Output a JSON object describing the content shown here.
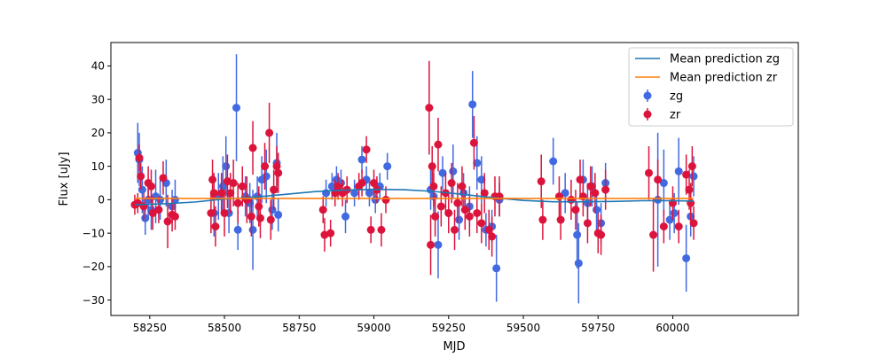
{
  "chart_data": {
    "type": "scatter",
    "title": "",
    "xlabel": "MJD",
    "ylabel": "Flux [uJy]",
    "xlim": [
      58120,
      60420
    ],
    "ylim": [
      -34.6,
      47.0
    ],
    "xticks": [
      58250,
      58500,
      58750,
      59000,
      59250,
      59500,
      59750,
      60000
    ],
    "yticks": [
      -30,
      -20,
      -10,
      0,
      10,
      20,
      30,
      40
    ],
    "grid": false,
    "legend_position": "top-right",
    "colors": {
      "zg": "#4169e1",
      "zr": "#dc143c",
      "pred_zg": "#1f77b4",
      "pred_zr": "#ff7f0e"
    },
    "lines": [
      {
        "name": "Mean prediction zg",
        "x": [
          58200,
          58300,
          58400,
          58500,
          58600,
          58700,
          58800,
          58900,
          59000,
          59100,
          59200,
          59300,
          59400,
          59500,
          59600,
          59700,
          59800,
          59900,
          60000,
          60070
        ],
        "y": [
          -1.5,
          -1.2,
          -0.7,
          0.2,
          0.8,
          1.6,
          2.4,
          2.9,
          3.1,
          3.0,
          2.5,
          1.6,
          0.6,
          -0.2,
          -0.6,
          -0.6,
          -0.5,
          -0.3,
          -0.3,
          -0.4
        ]
      },
      {
        "name": "Mean prediction zr",
        "x": [
          58200,
          60070
        ],
        "y": [
          0.4,
          0.4
        ]
      }
    ],
    "series": [
      {
        "name": "zg",
        "points": [
          {
            "x": 58210,
            "y": 14,
            "err": 9
          },
          {
            "x": 58215,
            "y": 12,
            "err": 8
          },
          {
            "x": 58225,
            "y": 3,
            "err": 7
          },
          {
            "x": 58235,
            "y": -5.5,
            "err": 5
          },
          {
            "x": 58245,
            "y": 0,
            "err": 6
          },
          {
            "x": 58255,
            "y": -3,
            "err": 6
          },
          {
            "x": 58270,
            "y": 1,
            "err": 8
          },
          {
            "x": 58285,
            "y": 0,
            "err": 6
          },
          {
            "x": 58305,
            "y": 5,
            "err": 7
          },
          {
            "x": 58325,
            "y": -2,
            "err": 5
          },
          {
            "x": 58335,
            "y": 0,
            "err": 6
          },
          {
            "x": 58465,
            "y": -4,
            "err": 7
          },
          {
            "x": 58480,
            "y": 1,
            "err": 7
          },
          {
            "x": 58495,
            "y": 4,
            "err": 9
          },
          {
            "x": 58505,
            "y": 10,
            "err": 9
          },
          {
            "x": 58515,
            "y": -4,
            "err": 6
          },
          {
            "x": 58540,
            "y": 27.5,
            "err": 16
          },
          {
            "x": 58545,
            "y": -9,
            "err": 6
          },
          {
            "x": 58570,
            "y": 1,
            "err": 6
          },
          {
            "x": 58585,
            "y": -1,
            "err": 6
          },
          {
            "x": 58595,
            "y": -9,
            "err": 12
          },
          {
            "x": 58610,
            "y": 1,
            "err": 6
          },
          {
            "x": 58625,
            "y": 6,
            "err": 7
          },
          {
            "x": 58640,
            "y": 7,
            "err": 8
          },
          {
            "x": 58660,
            "y": -3,
            "err": 6
          },
          {
            "x": 58675,
            "y": 11,
            "err": 9
          },
          {
            "x": 58680,
            "y": -4.5,
            "err": 5
          },
          {
            "x": 58840,
            "y": 2,
            "err": 4
          },
          {
            "x": 58860,
            "y": 4,
            "err": 4
          },
          {
            "x": 58875,
            "y": 6,
            "err": 4
          },
          {
            "x": 58890,
            "y": 5,
            "err": 4
          },
          {
            "x": 58905,
            "y": -5,
            "err": 5
          },
          {
            "x": 58935,
            "y": 2,
            "err": 4
          },
          {
            "x": 58960,
            "y": 12,
            "err": 4
          },
          {
            "x": 58975,
            "y": 6,
            "err": 4
          },
          {
            "x": 58985,
            "y": 2,
            "err": 4
          },
          {
            "x": 59005,
            "y": 0,
            "err": 4
          },
          {
            "x": 59020,
            "y": 4,
            "err": 4
          },
          {
            "x": 59045,
            "y": 10,
            "err": 4
          },
          {
            "x": 59190,
            "y": 3,
            "err": 6
          },
          {
            "x": 59200,
            "y": 1,
            "err": 7
          },
          {
            "x": 59215,
            "y": -13.5,
            "err": 10
          },
          {
            "x": 59230,
            "y": 8,
            "err": 5
          },
          {
            "x": 59250,
            "y": -4,
            "err": 6
          },
          {
            "x": 59265,
            "y": 8.5,
            "err": 8
          },
          {
            "x": 59285,
            "y": -6,
            "err": 6
          },
          {
            "x": 59300,
            "y": 2,
            "err": 6
          },
          {
            "x": 59320,
            "y": -2,
            "err": 6
          },
          {
            "x": 59330,
            "y": 28.5,
            "err": 10
          },
          {
            "x": 59345,
            "y": 11,
            "err": 8
          },
          {
            "x": 59360,
            "y": 6,
            "err": 7
          },
          {
            "x": 59375,
            "y": -9,
            "err": 5
          },
          {
            "x": 59395,
            "y": -8,
            "err": 5
          },
          {
            "x": 59410,
            "y": -20.5,
            "err": 10
          },
          {
            "x": 59420,
            "y": 0,
            "err": 5
          },
          {
            "x": 59600,
            "y": 11.5,
            "err": 7
          },
          {
            "x": 59640,
            "y": 2,
            "err": 6
          },
          {
            "x": 59680,
            "y": -10.5,
            "err": 10
          },
          {
            "x": 59685,
            "y": -19,
            "err": 12
          },
          {
            "x": 59700,
            "y": 6,
            "err": 6
          },
          {
            "x": 59715,
            "y": -1,
            "err": 6
          },
          {
            "x": 59730,
            "y": 4,
            "err": 6
          },
          {
            "x": 59745,
            "y": -3,
            "err": 6
          },
          {
            "x": 59760,
            "y": -7,
            "err": 6
          },
          {
            "x": 59775,
            "y": 5,
            "err": 6
          },
          {
            "x": 59950,
            "y": 0,
            "err": 20
          },
          {
            "x": 59970,
            "y": 5,
            "err": 10
          },
          {
            "x": 59990,
            "y": -6,
            "err": 6
          },
          {
            "x": 60005,
            "y": -4,
            "err": 6
          },
          {
            "x": 60020,
            "y": 8.5,
            "err": 10
          },
          {
            "x": 60045,
            "y": -17.5,
            "err": 10
          },
          {
            "x": 60060,
            "y": -5,
            "err": 6
          },
          {
            "x": 60070,
            "y": 7,
            "err": 6
          }
        ]
      },
      {
        "name": "zr",
        "points": [
          {
            "x": 58200,
            "y": -1.5,
            "err": 3
          },
          {
            "x": 58210,
            "y": -1,
            "err": 3
          },
          {
            "x": 58215,
            "y": 12.5,
            "err": 4
          },
          {
            "x": 58220,
            "y": 7,
            "err": 4
          },
          {
            "x": 58230,
            "y": -2,
            "err": 4
          },
          {
            "x": 58245,
            "y": 5,
            "err": 5
          },
          {
            "x": 58255,
            "y": 4,
            "err": 5
          },
          {
            "x": 58260,
            "y": -4,
            "err": 5
          },
          {
            "x": 58280,
            "y": -3,
            "err": 4
          },
          {
            "x": 58295,
            "y": 6.5,
            "err": 5
          },
          {
            "x": 58310,
            "y": -6.5,
            "err": 8
          },
          {
            "x": 58325,
            "y": -4.5,
            "err": 5
          },
          {
            "x": 58335,
            "y": -5,
            "err": 4
          },
          {
            "x": 58455,
            "y": -4,
            "err": 6
          },
          {
            "x": 58460,
            "y": 6,
            "err": 6
          },
          {
            "x": 58465,
            "y": 2,
            "err": 6
          },
          {
            "x": 58470,
            "y": -8,
            "err": 6
          },
          {
            "x": 58490,
            "y": 2,
            "err": 6
          },
          {
            "x": 58500,
            "y": -4,
            "err": 7
          },
          {
            "x": 58510,
            "y": 5.5,
            "err": 8
          },
          {
            "x": 58520,
            "y": 2,
            "err": 6
          },
          {
            "x": 58530,
            "y": 5,
            "err": 7
          },
          {
            "x": 58545,
            "y": -1,
            "err": 6
          },
          {
            "x": 58560,
            "y": 4,
            "err": 6
          },
          {
            "x": 58575,
            "y": 0,
            "err": 7
          },
          {
            "x": 58590,
            "y": -5,
            "err": 6
          },
          {
            "x": 58595,
            "y": 15.5,
            "err": 8
          },
          {
            "x": 58615,
            "y": -2,
            "err": 6
          },
          {
            "x": 58620,
            "y": -5.5,
            "err": 6
          },
          {
            "x": 58635,
            "y": 10,
            "err": 7
          },
          {
            "x": 58650,
            "y": 20,
            "err": 9
          },
          {
            "x": 58655,
            "y": -6,
            "err": 6
          },
          {
            "x": 58665,
            "y": 3,
            "err": 6
          },
          {
            "x": 58675,
            "y": 10,
            "err": 6
          },
          {
            "x": 58680,
            "y": 8,
            "err": 6
          },
          {
            "x": 58830,
            "y": -3,
            "err": 4
          },
          {
            "x": 58835,
            "y": -10.5,
            "err": 5
          },
          {
            "x": 58855,
            "y": -10,
            "err": 4
          },
          {
            "x": 58870,
            "y": 2,
            "err": 4
          },
          {
            "x": 58880,
            "y": 4,
            "err": 4
          },
          {
            "x": 58895,
            "y": 2,
            "err": 4
          },
          {
            "x": 58910,
            "y": 3,
            "err": 4
          },
          {
            "x": 58950,
            "y": 4,
            "err": 4
          },
          {
            "x": 58960,
            "y": 5,
            "err": 4
          },
          {
            "x": 58975,
            "y": 15,
            "err": 4
          },
          {
            "x": 58990,
            "y": -9,
            "err": 4
          },
          {
            "x": 59000,
            "y": 5,
            "err": 4
          },
          {
            "x": 59010,
            "y": 3,
            "err": 4
          },
          {
            "x": 59025,
            "y": -9,
            "err": 5
          },
          {
            "x": 59040,
            "y": 0,
            "err": 4
          },
          {
            "x": 59185,
            "y": 27.5,
            "err": 14
          },
          {
            "x": 59190,
            "y": -13.5,
            "err": 9
          },
          {
            "x": 59195,
            "y": 10,
            "err": 6
          },
          {
            "x": 59200,
            "y": 4,
            "err": 6
          },
          {
            "x": 59205,
            "y": -5,
            "err": 6
          },
          {
            "x": 59215,
            "y": 16.5,
            "err": 8
          },
          {
            "x": 59225,
            "y": -2,
            "err": 6
          },
          {
            "x": 59240,
            "y": 2,
            "err": 6
          },
          {
            "x": 59250,
            "y": -4,
            "err": 6
          },
          {
            "x": 59260,
            "y": 5,
            "err": 6
          },
          {
            "x": 59270,
            "y": -9,
            "err": 6
          },
          {
            "x": 59280,
            "y": -1,
            "err": 6
          },
          {
            "x": 59295,
            "y": 4,
            "err": 6
          },
          {
            "x": 59305,
            "y": -3,
            "err": 6
          },
          {
            "x": 59320,
            "y": -5,
            "err": 6
          },
          {
            "x": 59335,
            "y": 17,
            "err": 8
          },
          {
            "x": 59345,
            "y": -4,
            "err": 6
          },
          {
            "x": 59360,
            "y": -7,
            "err": 6
          },
          {
            "x": 59370,
            "y": 2,
            "err": 6
          },
          {
            "x": 59385,
            "y": -9,
            "err": 6
          },
          {
            "x": 59395,
            "y": -11,
            "err": 6
          },
          {
            "x": 59405,
            "y": 1,
            "err": 6
          },
          {
            "x": 59420,
            "y": 1,
            "err": 6
          },
          {
            "x": 59560,
            "y": 5.5,
            "err": 8
          },
          {
            "x": 59565,
            "y": -6,
            "err": 6
          },
          {
            "x": 59620,
            "y": 1,
            "err": 6
          },
          {
            "x": 59625,
            "y": -6,
            "err": 6
          },
          {
            "x": 59660,
            "y": 0,
            "err": 6
          },
          {
            "x": 59675,
            "y": -3,
            "err": 6
          },
          {
            "x": 59690,
            "y": 6,
            "err": 6
          },
          {
            "x": 59700,
            "y": 1,
            "err": 6
          },
          {
            "x": 59715,
            "y": -7,
            "err": 6
          },
          {
            "x": 59725,
            "y": 4,
            "err": 6
          },
          {
            "x": 59740,
            "y": 2,
            "err": 6
          },
          {
            "x": 59750,
            "y": -10,
            "err": 6
          },
          {
            "x": 59760,
            "y": -10.5,
            "err": 6
          },
          {
            "x": 59775,
            "y": 3,
            "err": 6
          },
          {
            "x": 59920,
            "y": 8,
            "err": 8
          },
          {
            "x": 59935,
            "y": -10.5,
            "err": 11
          },
          {
            "x": 59950,
            "y": 6,
            "err": 6
          },
          {
            "x": 59970,
            "y": -8,
            "err": 5
          },
          {
            "x": 60000,
            "y": -1,
            "err": 5
          },
          {
            "x": 60020,
            "y": -8,
            "err": 5
          },
          {
            "x": 60045,
            "y": 7.5,
            "err": 6
          },
          {
            "x": 60055,
            "y": 3,
            "err": 6
          },
          {
            "x": 60060,
            "y": -1,
            "err": 6
          },
          {
            "x": 60065,
            "y": 10,
            "err": 6
          },
          {
            "x": 60070,
            "y": -7,
            "err": 5
          }
        ]
      }
    ]
  }
}
